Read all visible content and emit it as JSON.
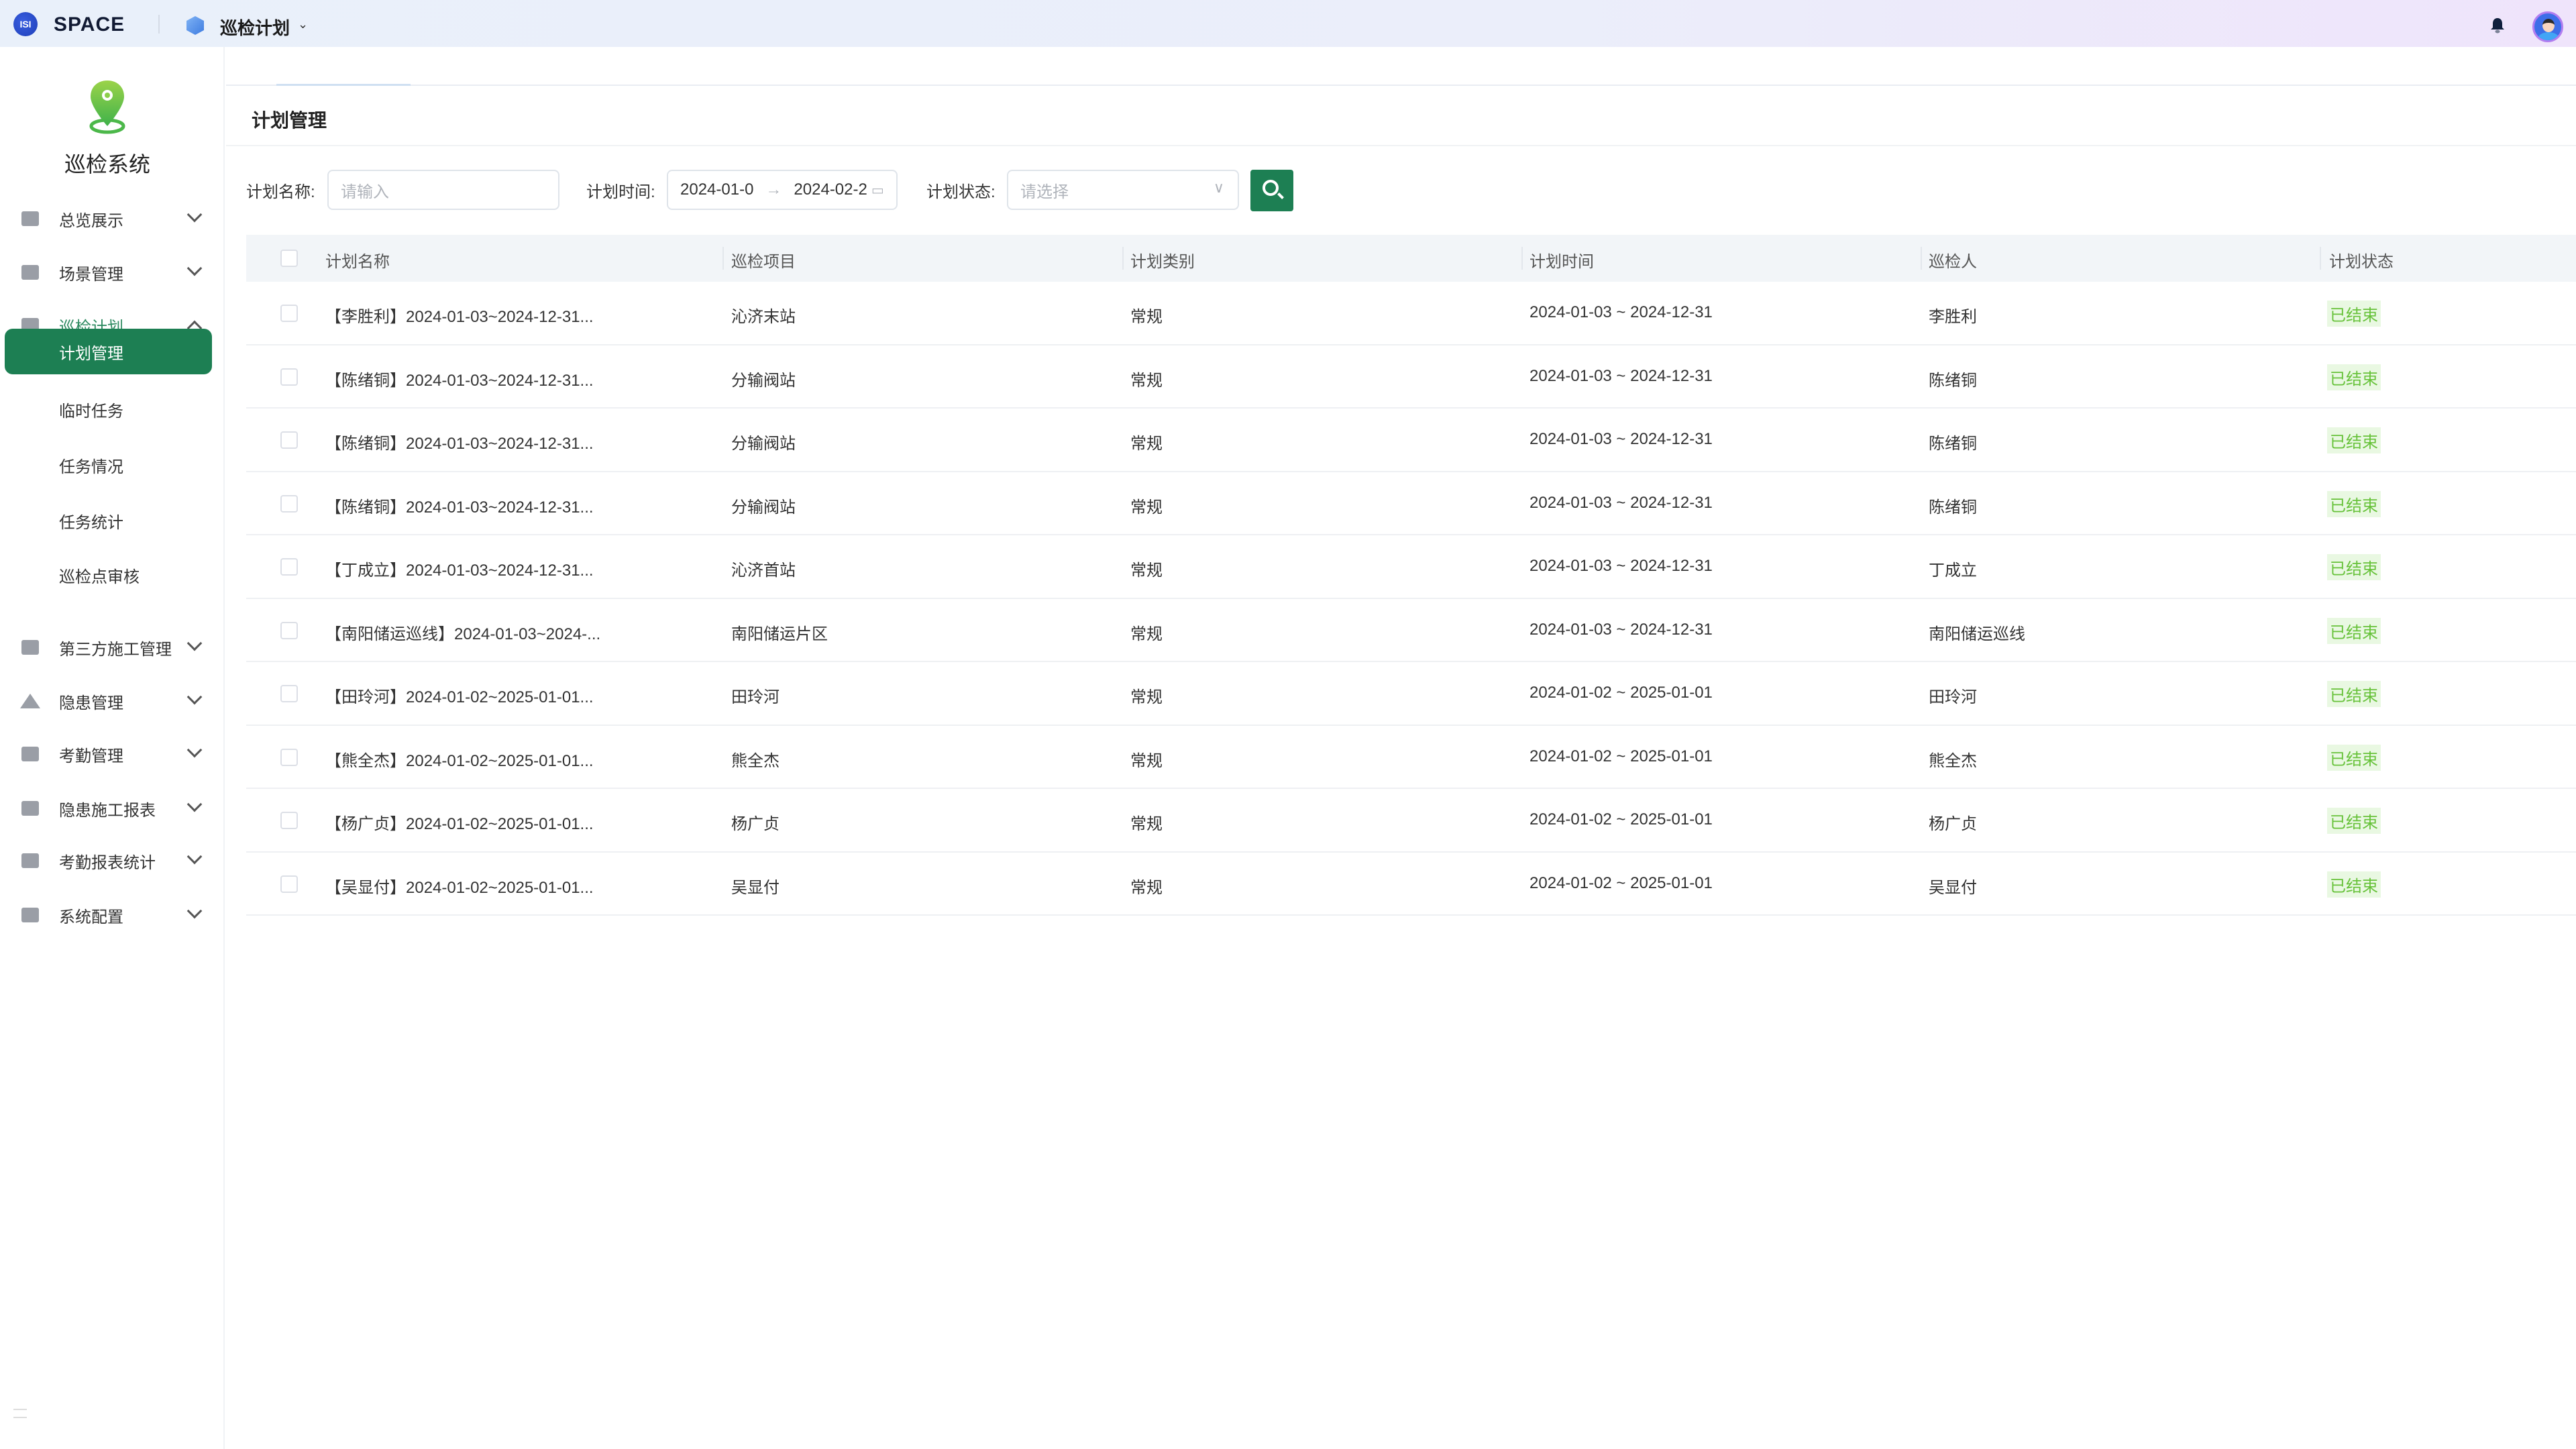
{
  "topbar": {
    "brand": "SPACE",
    "module": "巡检计划",
    "icons": [
      "space-logo-icon",
      "cube-icon",
      "chevron-down-icon",
      "bell-icon",
      "avatar"
    ]
  },
  "sidebar": {
    "system_name": "巡检系统",
    "items": [
      {
        "label": "总览展示",
        "icon": "map-icon",
        "expanded": false
      },
      {
        "label": "场景管理",
        "icon": "grid-icon",
        "expanded": false
      },
      {
        "label": "巡检计划",
        "icon": "calendar-edit-icon",
        "expanded": true,
        "children": [
          {
            "label": "计划管理",
            "active": true
          },
          {
            "label": "临时任务"
          },
          {
            "label": "任务情况"
          },
          {
            "label": "任务统计"
          },
          {
            "label": "巡检点审核"
          }
        ]
      },
      {
        "label": "第三方施工管理",
        "icon": "board-icon",
        "expanded": false
      },
      {
        "label": "隐患管理",
        "icon": "warning-icon",
        "expanded": false
      },
      {
        "label": "考勤管理",
        "icon": "calendar-check-icon",
        "expanded": false
      },
      {
        "label": "隐患施工报表",
        "icon": "report-icon",
        "expanded": false
      },
      {
        "label": "考勤报表统计",
        "icon": "chart-calendar-icon",
        "expanded": false
      },
      {
        "label": "系统配置",
        "icon": "sliders-icon",
        "expanded": false
      }
    ]
  },
  "page": {
    "title": "计划管理"
  },
  "filters": {
    "name_label": "计划名称:",
    "name_placeholder": "请输入",
    "time_label": "计划时间:",
    "time_start": "2024-01-0",
    "time_sep": "→",
    "time_end": "2024-02-2",
    "status_label": "计划状态:",
    "status_placeholder": "请选择"
  },
  "colors": {
    "accent": "#1d7f53",
    "status_text": "#67c23a",
    "status_bg": "#e9f8e2",
    "header_bg": "#f2f5f8"
  },
  "table": {
    "columns": [
      "计划名称",
      "巡检项目",
      "计划类别",
      "计划时间",
      "巡检人",
      "计划状态"
    ],
    "rows": [
      [
        "【李胜利】2024-01-03~2024-12-31...",
        "沁济末站",
        "常规",
        "2024-01-03 ~ 2024-12-31",
        "李胜利",
        "已结束"
      ],
      [
        "【陈绪铜】2024-01-03~2024-12-31...",
        "分输阀站",
        "常规",
        "2024-01-03 ~ 2024-12-31",
        "陈绪铜",
        "已结束"
      ],
      [
        "【陈绪铜】2024-01-03~2024-12-31...",
        "分输阀站",
        "常规",
        "2024-01-03 ~ 2024-12-31",
        "陈绪铜",
        "已结束"
      ],
      [
        "【陈绪铜】2024-01-03~2024-12-31...",
        "分输阀站",
        "常规",
        "2024-01-03 ~ 2024-12-31",
        "陈绪铜",
        "已结束"
      ],
      [
        "【丁成立】2024-01-03~2024-12-31...",
        "沁济首站",
        "常规",
        "2024-01-03 ~ 2024-12-31",
        "丁成立",
        "已结束"
      ],
      [
        "【南阳储运巡线】2024-01-03~2024-...",
        "南阳储运片区",
        "常规",
        "2024-01-03 ~ 2024-12-31",
        "南阳储运巡线",
        "已结束"
      ],
      [
        "【田玲河】2024-01-02~2025-01-01...",
        "田玲河",
        "常规",
        "2024-01-02 ~ 2025-01-01",
        "田玲河",
        "已结束"
      ],
      [
        "【熊全杰】2024-01-02~2025-01-01...",
        "熊全杰",
        "常规",
        "2024-01-02 ~ 2025-01-01",
        "熊全杰",
        "已结束"
      ],
      [
        "【杨广贞】2024-01-02~2025-01-01...",
        "杨广贞",
        "常规",
        "2024-01-02 ~ 2025-01-01",
        "杨广贞",
        "已结束"
      ],
      [
        "【吴显付】2024-01-02~2025-01-01...",
        "吴显付",
        "常规",
        "2024-01-02 ~ 2025-01-01",
        "吴显付",
        "已结束"
      ]
    ]
  }
}
